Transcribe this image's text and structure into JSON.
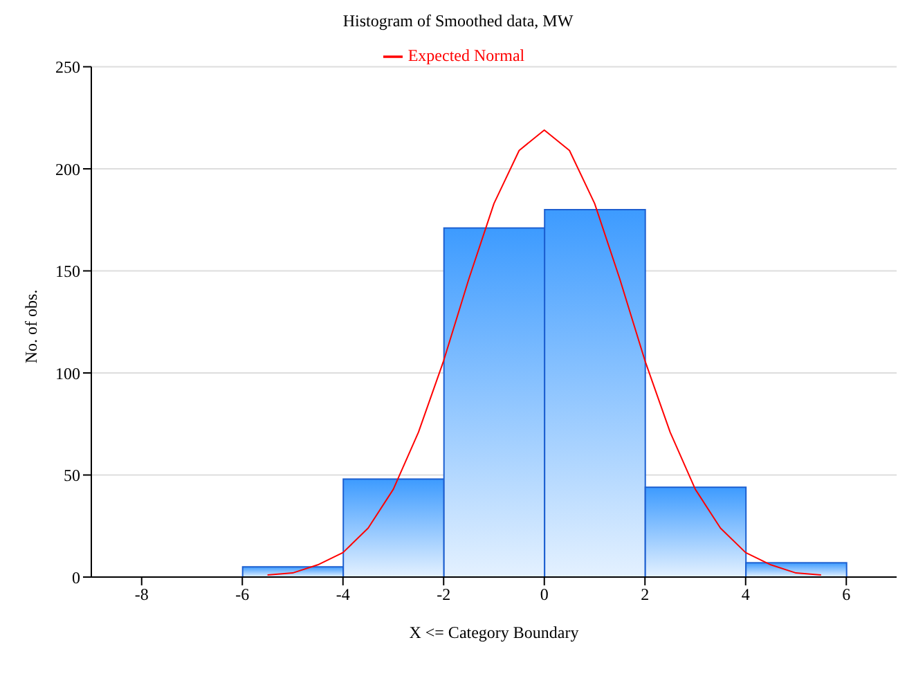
{
  "chart_data": {
    "type": "histogram",
    "title": "Histogram of Smoothed data, MW",
    "xlabel": "X <= Category Boundary",
    "ylabel": "No. of obs.",
    "bins": [
      -8,
      -6,
      -4,
      -2,
      0,
      2,
      4,
      6
    ],
    "values": [
      0,
      5,
      48,
      171,
      180,
      44,
      7
    ],
    "color": "#1c5fd0",
    "series": [
      {
        "name": "Expected Normal",
        "type": "line",
        "color": "#ff0000",
        "x": [
          -5.5,
          -5,
          -4.5,
          -4,
          -3.5,
          -3,
          -2.5,
          -2,
          -1.5,
          -1,
          -0.5,
          0,
          0.5,
          1,
          1.5,
          2,
          2.5,
          3,
          3.5,
          4,
          4.5,
          5,
          5.5
        ],
        "values": [
          1,
          2,
          6,
          12,
          24,
          43,
          71,
          106,
          146,
          183,
          209,
          219,
          209,
          183,
          146,
          106,
          71,
          43,
          24,
          12,
          6,
          2,
          1
        ]
      }
    ],
    "xlim": [
      -9,
      7
    ],
    "xticks": [
      -8,
      -6,
      -4,
      -2,
      0,
      2,
      4,
      6
    ],
    "ylim": [
      0,
      250
    ],
    "yticks": [
      0,
      50,
      100,
      150,
      200,
      250
    ],
    "grid": "y",
    "legend": "top",
    "marker": "none",
    "line_style": "solid"
  }
}
